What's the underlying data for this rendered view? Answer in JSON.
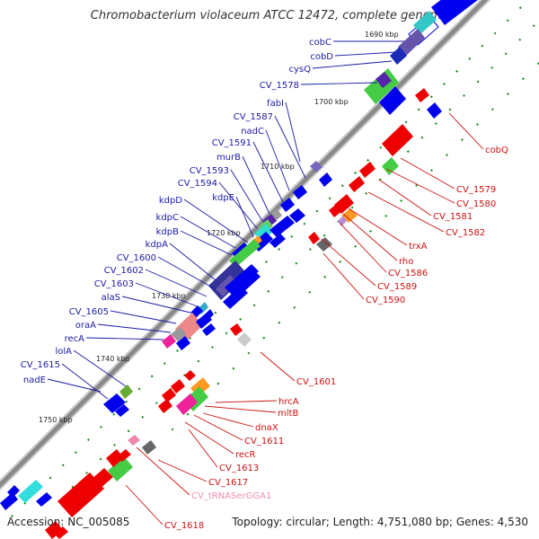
{
  "title": "Chromobacterium violaceum ATCC 12472, complete genome",
  "footer": {
    "accession": "Accession: NC_005085",
    "summary": "Topology: circular; Length: 4,751,080 bp; Genes: 4,530"
  },
  "colors": {
    "forward_gene": "#0000ee",
    "reverse_gene": "#ee0000",
    "forward_label": "#1a1aa6",
    "reverse_label": "#cc1111",
    "trna_label": "#f090a8",
    "backbone": "#888888",
    "tick": "#0a8a0a"
  },
  "kbp_labels": [
    "1690 kbp",
    "1700 kbp",
    "1710 kbp",
    "1720 kbp",
    "1730 kbp",
    "1740 kbp",
    "1750 kbp"
  ],
  "forward_labels": [
    "cobC",
    "cobD",
    "cysQ",
    "CV_1578",
    "fabI",
    "CV_1587",
    "nadC",
    "CV_1591",
    "murB",
    "CV_1593",
    "CV_1594",
    "kdpE",
    "kdpD",
    "kdpC",
    "kdpB",
    "kdpA",
    "CV_1600",
    "CV_1602",
    "CV_1603",
    "alaS",
    "CV_1605",
    "oraA",
    "recA",
    "lolA",
    "CV_1615",
    "nadE"
  ],
  "reverse_labels": [
    "cobQ",
    "CV_1579",
    "CV_1580",
    "CV_1581",
    "CV_1582",
    "trxA",
    "rho",
    "CV_1586",
    "CV_1589",
    "CV_1590",
    "CV_1601",
    "hrcA",
    "mltB",
    "dnaX",
    "CV_1611",
    "recR",
    "CV_1613",
    "CV_1617",
    "CV_tRNASerGGA1",
    "CV_1618"
  ]
}
